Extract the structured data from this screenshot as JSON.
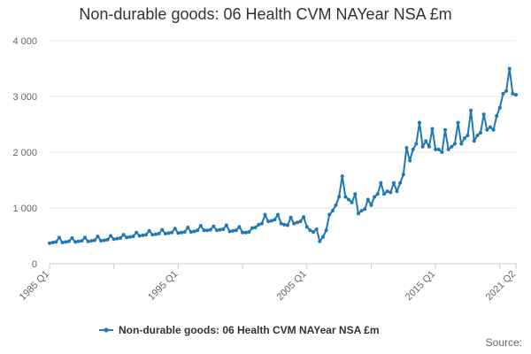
{
  "chart_data": {
    "type": "line",
    "title": "Non-durable goods: 06 Health CVM NAYear NSA £m",
    "xlabel": "",
    "ylabel": "",
    "ylim": [
      0,
      4000
    ],
    "yticks": [
      0,
      1000,
      2000,
      3000,
      4000
    ],
    "ytick_labels": [
      "0",
      "1 000",
      "2 000",
      "3 000",
      "4 000"
    ],
    "x_start": "1985 Q1",
    "x_end": "2021 Q2",
    "xtick_labels": [
      {
        "label": "1985 Q1",
        "index": 0
      },
      {
        "label": "1995 Q1",
        "index": 40
      },
      {
        "label": "2005 Q1",
        "index": 80
      },
      {
        "label": "2015 Q1",
        "index": 120
      },
      {
        "label": "2021 Q2",
        "index": 145
      }
    ],
    "grid": true,
    "legend_position": "bottom",
    "color": "#1f77b4",
    "series": [
      {
        "name": "Non-durable goods: 06 Health CVM NAYear NSA £m",
        "values": [
          370,
          380,
          390,
          470,
          380,
          390,
          400,
          460,
          390,
          400,
          410,
          470,
          400,
          410,
          420,
          490,
          410,
          420,
          430,
          500,
          440,
          450,
          460,
          520,
          470,
          480,
          490,
          560,
          500,
          510,
          520,
          590,
          520,
          530,
          540,
          610,
          540,
          550,
          560,
          630,
          550,
          560,
          570,
          650,
          570,
          580,
          600,
          680,
          600,
          600,
          610,
          670,
          600,
          610,
          620,
          690,
          580,
          590,
          600,
          660,
          560,
          560,
          570,
          640,
          650,
          700,
          720,
          880,
          760,
          770,
          790,
          880,
          720,
          700,
          690,
          830,
          720,
          740,
          760,
          840,
          660,
          600,
          570,
          620,
          400,
          480,
          600,
          880,
          950,
          1050,
          1200,
          1570,
          1200,
          1150,
          1100,
          1250,
          900,
          950,
          980,
          1150,
          1050,
          1200,
          1250,
          1450,
          1250,
          1300,
          1280,
          1450,
          1300,
          1450,
          1600,
          2080,
          1850,
          2050,
          2150,
          2530,
          2100,
          2200,
          2100,
          2420,
          2050,
          2050,
          2000,
          2400,
          2050,
          2100,
          2150,
          2530,
          2150,
          2250,
          2300,
          2750,
          2200,
          2300,
          2350,
          2680,
          2400,
          2450,
          2400,
          2650,
          2800,
          3050,
          3100,
          3500,
          3050,
          3030
        ]
      }
    ]
  },
  "source_label": "Source:"
}
